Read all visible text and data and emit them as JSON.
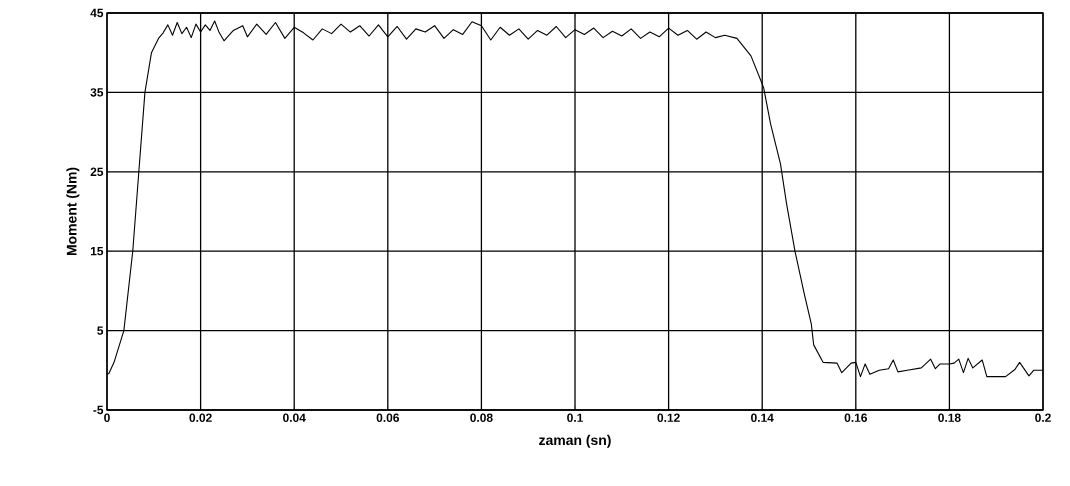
{
  "chart_data": {
    "type": "line",
    "xlabel": "zaman (sn)",
    "ylabel": "Moment (Nm)",
    "xlim": [
      0,
      0.2
    ],
    "ylim": [
      -5,
      45
    ],
    "xticks": [
      0,
      0.02,
      0.04,
      0.06,
      0.08,
      0.1,
      0.12,
      0.14,
      0.16,
      0.18,
      0.2
    ],
    "yticks": [
      -5,
      5,
      15,
      25,
      35,
      45
    ],
    "grid": true,
    "marker": "none",
    "line_style": "solid",
    "series": [
      {
        "color": "#000000",
        "x": [
          0,
          0.0004,
          0.0015,
          0.0036,
          0.0055,
          0.0068,
          0.0081,
          0.0095,
          0.011,
          0.012,
          0.013,
          0.014,
          0.015,
          0.016,
          0.017,
          0.018,
          0.019,
          0.02,
          0.021,
          0.022,
          0.023,
          0.024,
          0.025,
          0.027,
          0.029,
          0.03,
          0.032,
          0.034,
          0.036,
          0.038,
          0.04,
          0.042,
          0.044,
          0.046,
          0.048,
          0.05,
          0.052,
          0.054,
          0.056,
          0.058,
          0.06,
          0.062,
          0.064,
          0.066,
          0.068,
          0.07,
          0.072,
          0.074,
          0.076,
          0.078,
          0.08,
          0.082,
          0.084,
          0.086,
          0.088,
          0.09,
          0.092,
          0.094,
          0.096,
          0.098,
          0.1,
          0.102,
          0.104,
          0.106,
          0.108,
          0.11,
          0.112,
          0.114,
          0.116,
          0.118,
          0.12,
          0.122,
          0.124,
          0.126,
          0.128,
          0.13,
          0.132,
          0.1346,
          0.1376,
          0.1403,
          0.1418,
          0.1439,
          0.1452,
          0.147,
          0.149,
          0.1505,
          0.151,
          0.153,
          0.156,
          0.157,
          0.159,
          0.16,
          0.161,
          0.162,
          0.163,
          0.165,
          0.167,
          0.168,
          0.169,
          0.171,
          0.174,
          0.176,
          0.177,
          0.178,
          0.18,
          0.181,
          0.182,
          0.183,
          0.184,
          0.185,
          0.187,
          0.188,
          0.192,
          0.194,
          0.195,
          0.197,
          0.198,
          0.2
        ],
        "values": [
          -0.5,
          -0.4,
          1.0,
          5,
          15,
          25,
          35,
          40,
          41.8,
          42.5,
          43.5,
          42.2,
          43.8,
          42.4,
          43.2,
          41.9,
          43.6,
          42.6,
          43.5,
          42.8,
          44.0,
          42.5,
          41.5,
          42.8,
          43.4,
          42.0,
          43.6,
          42.3,
          43.8,
          41.8,
          43.2,
          42.5,
          41.6,
          43.0,
          42.4,
          43.6,
          42.6,
          43.4,
          42.1,
          43.5,
          42.0,
          43.3,
          41.7,
          43.0,
          42.6,
          43.4,
          41.8,
          42.9,
          42.3,
          43.9,
          43.4,
          41.6,
          43.2,
          42.2,
          43.0,
          41.7,
          42.8,
          42.2,
          43.3,
          41.9,
          42.9,
          42.3,
          43.1,
          41.9,
          42.7,
          42.1,
          43.0,
          41.8,
          42.6,
          42.0,
          43.1,
          42.2,
          42.8,
          41.7,
          42.6,
          41.9,
          42.2,
          41.8,
          39.6,
          35.6,
          31,
          26,
          21,
          15,
          9.6,
          5.8,
          3.2,
          1.0,
          0.9,
          -0.3,
          0.9,
          1.0,
          -0.8,
          0.8,
          -0.5,
          0,
          0.2,
          1.3,
          -0.2,
          0,
          0.3,
          1.4,
          0.2,
          0.8,
          0.8,
          0.9,
          1.4,
          -0.3,
          1.5,
          0.3,
          1.3,
          -0.8,
          -0.8,
          0.1,
          1.0,
          -0.7,
          0,
          0
        ]
      }
    ]
  }
}
